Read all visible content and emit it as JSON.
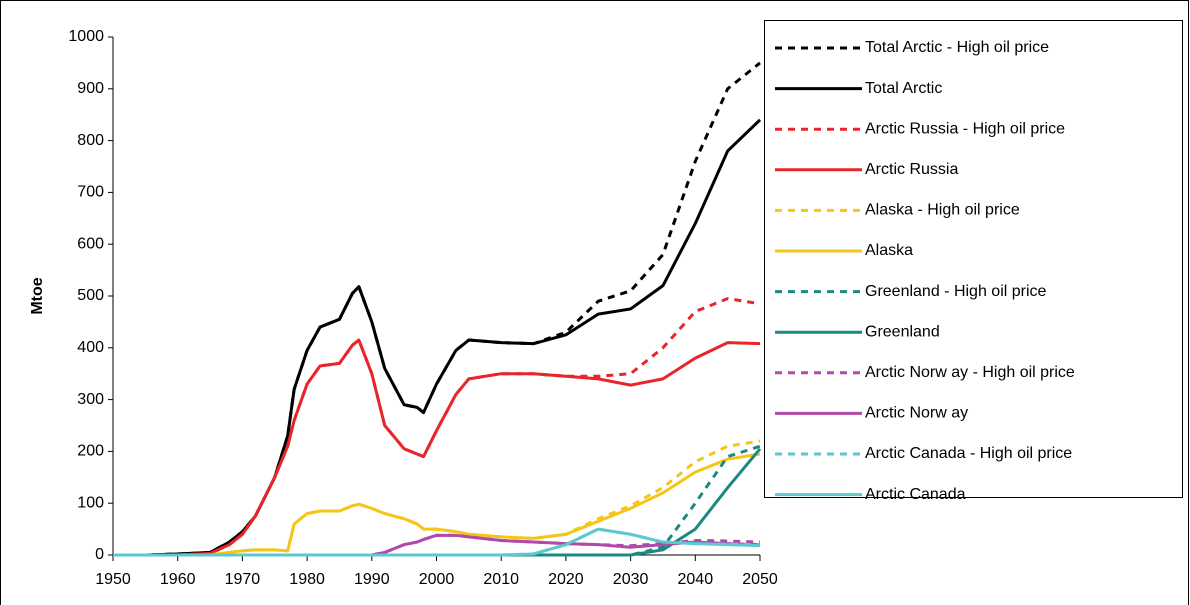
{
  "chart_data": {
    "type": "line",
    "y_label": "Mtoe",
    "x": [
      1950,
      1955,
      1960,
      1965,
      1968,
      1970,
      1972,
      1975,
      1977,
      1978,
      1980,
      1982,
      1985,
      1987,
      1988,
      1990,
      1992,
      1995,
      1997,
      1998,
      2000,
      2003,
      2005,
      2010,
      2015,
      2020,
      2025,
      2030,
      2035,
      2040,
      2045,
      2050
    ],
    "xlim": [
      1950,
      2050
    ],
    "xticks": [
      1950,
      1960,
      1970,
      1980,
      1990,
      2000,
      2010,
      2020,
      2030,
      2040,
      2050
    ],
    "ylim": [
      0,
      1000
    ],
    "yticks": [
      0,
      100,
      200,
      300,
      400,
      500,
      600,
      700,
      800,
      900,
      1000
    ],
    "grid": false,
    "legend": "right",
    "series": [
      {
        "name": "Total Arctic - High oil price",
        "color": "#000000",
        "dash": true,
        "values": [
          0,
          0,
          2,
          5,
          25,
          45,
          75,
          150,
          230,
          320,
          395,
          440,
          455,
          505,
          518,
          450,
          360,
          290,
          285,
          275,
          330,
          395,
          415,
          410,
          408,
          430,
          490,
          510,
          580,
          760,
          900,
          950
        ]
      },
      {
        "name": "Total Arctic",
        "color": "#000000",
        "dash": false,
        "values": [
          0,
          0,
          2,
          5,
          25,
          45,
          75,
          150,
          230,
          320,
          395,
          440,
          455,
          505,
          518,
          450,
          360,
          290,
          285,
          275,
          330,
          395,
          415,
          410,
          408,
          425,
          465,
          475,
          520,
          640,
          780,
          840
        ]
      },
      {
        "name": "Arctic Russia - High oil price",
        "color": "#e8262a",
        "dash": true,
        "values": [
          0,
          0,
          0,
          3,
          20,
          40,
          75,
          150,
          210,
          260,
          330,
          365,
          370,
          405,
          415,
          350,
          250,
          205,
          195,
          190,
          240,
          310,
          340,
          350,
          350,
          345,
          345,
          350,
          400,
          470,
          495,
          485
        ]
      },
      {
        "name": "Arctic Russia",
        "color": "#e8262a",
        "dash": false,
        "values": [
          0,
          0,
          0,
          3,
          20,
          40,
          75,
          150,
          210,
          260,
          330,
          365,
          370,
          405,
          415,
          350,
          250,
          205,
          195,
          190,
          240,
          310,
          340,
          350,
          350,
          345,
          340,
          328,
          340,
          380,
          410,
          408
        ]
      },
      {
        "name": "Alaska - High oil price",
        "color": "#f5c518",
        "dash": true,
        "values": [
          0,
          0,
          0,
          0,
          5,
          8,
          10,
          10,
          8,
          60,
          80,
          85,
          85,
          95,
          98,
          90,
          80,
          70,
          60,
          50,
          50,
          45,
          40,
          35,
          32,
          40,
          70,
          95,
          130,
          180,
          210,
          220
        ]
      },
      {
        "name": "Alaska",
        "color": "#f5c518",
        "dash": false,
        "values": [
          0,
          0,
          0,
          0,
          5,
          8,
          10,
          10,
          8,
          60,
          80,
          85,
          85,
          95,
          98,
          90,
          80,
          70,
          60,
          50,
          50,
          45,
          40,
          35,
          32,
          40,
          65,
          90,
          120,
          160,
          185,
          195
        ]
      },
      {
        "name": "Greenland - High oil price",
        "color": "#1a8a80",
        "dash": true,
        "values": [
          0,
          0,
          0,
          0,
          0,
          0,
          0,
          0,
          0,
          0,
          0,
          0,
          0,
          0,
          0,
          0,
          0,
          0,
          0,
          0,
          0,
          0,
          0,
          0,
          0,
          0,
          0,
          0,
          15,
          100,
          190,
          210
        ]
      },
      {
        "name": "Greenland",
        "color": "#1a8a80",
        "dash": false,
        "values": [
          0,
          0,
          0,
          0,
          0,
          0,
          0,
          0,
          0,
          0,
          0,
          0,
          0,
          0,
          0,
          0,
          0,
          0,
          0,
          0,
          0,
          0,
          0,
          0,
          0,
          0,
          0,
          0,
          10,
          50,
          130,
          205
        ]
      },
      {
        "name": "Arctic Norw ay - High oil price",
        "color": "#b04aa8",
        "dash": true,
        "values": [
          0,
          0,
          0,
          0,
          0,
          0,
          0,
          0,
          0,
          0,
          0,
          0,
          0,
          0,
          0,
          0,
          5,
          20,
          25,
          30,
          38,
          38,
          35,
          28,
          25,
          22,
          20,
          18,
          22,
          28,
          27,
          25
        ]
      },
      {
        "name": "Arctic Norw ay",
        "color": "#b04aa8",
        "dash": false,
        "values": [
          0,
          0,
          0,
          0,
          0,
          0,
          0,
          0,
          0,
          0,
          0,
          0,
          0,
          0,
          0,
          0,
          5,
          20,
          25,
          30,
          38,
          38,
          35,
          28,
          25,
          22,
          20,
          15,
          20,
          25,
          22,
          20
        ]
      },
      {
        "name": "Arctic Canada - High oil price",
        "color": "#5cc8d0",
        "dash": true,
        "values": [
          0,
          0,
          0,
          0,
          0,
          0,
          0,
          0,
          0,
          0,
          0,
          0,
          0,
          0,
          0,
          0,
          0,
          0,
          0,
          0,
          0,
          0,
          0,
          0,
          2,
          20,
          50,
          40,
          25,
          22,
          21,
          20
        ]
      },
      {
        "name": "Arctic Canada",
        "color": "#5cc8d0",
        "dash": false,
        "values": [
          0,
          0,
          0,
          0,
          0,
          0,
          0,
          0,
          0,
          0,
          0,
          0,
          0,
          0,
          0,
          0,
          0,
          0,
          0,
          0,
          0,
          0,
          0,
          0,
          2,
          20,
          50,
          40,
          25,
          22,
          20,
          18
        ]
      }
    ]
  }
}
